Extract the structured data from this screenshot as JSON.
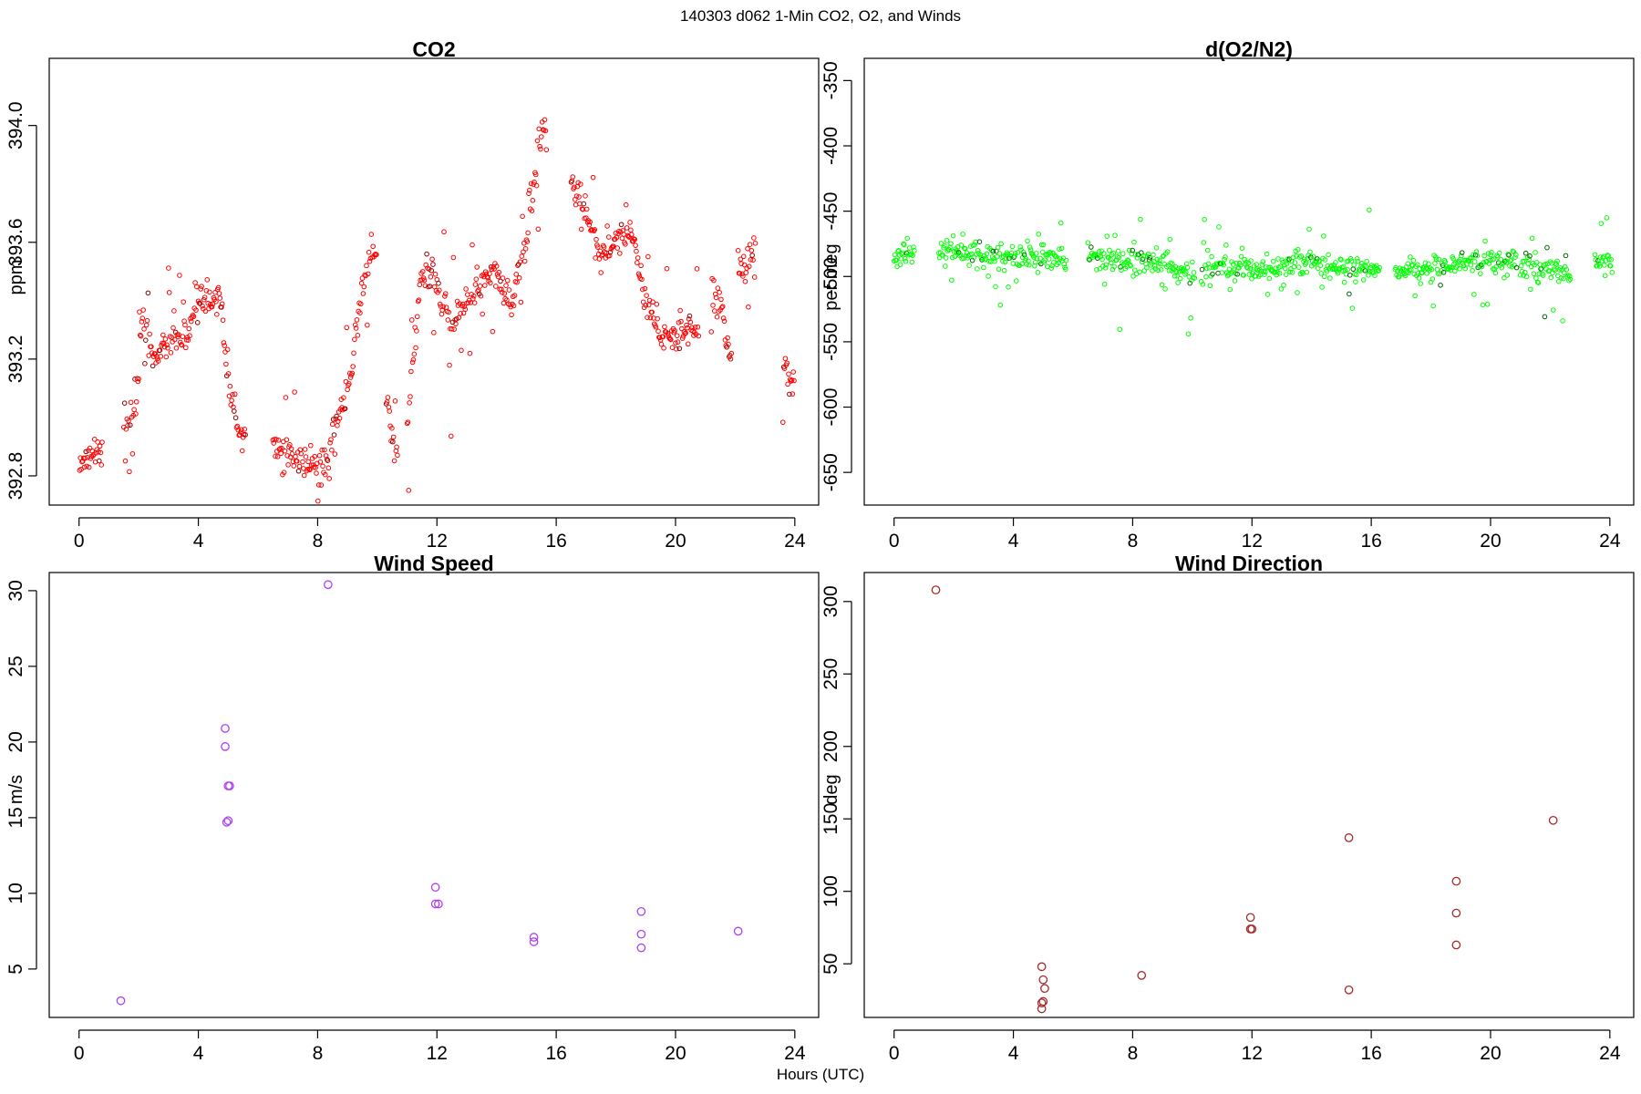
{
  "figure": {
    "title": "140303   d062   1-Min CO2, O2, and Winds",
    "xlabel": "Hours (UTC)"
  },
  "chart_data": [
    {
      "type": "scatter",
      "title": "CO2",
      "ylabel": "ppm",
      "xlim": [
        -1,
        24.8
      ],
      "ylim": [
        392.7,
        394.23
      ],
      "xticks": [
        0,
        4,
        8,
        12,
        16,
        20,
        24
      ],
      "yticks": [
        392.8,
        393.2,
        393.6,
        394.0
      ],
      "ytick_labels": [
        "392.8",
        "393.2",
        "393.6",
        "394.0"
      ],
      "color": "#ff0000",
      "dark_color": "#8b0000",
      "marker_size": "small",
      "anchors": [
        [
          0.02,
          392.84
        ],
        [
          0.6,
          392.88
        ],
        [
          0.8,
          null
        ],
        [
          1.5,
          392.98
        ],
        [
          1.9,
          393.02
        ],
        [
          2.1,
          393.32
        ],
        [
          2.5,
          393.2
        ],
        [
          3.5,
          393.28
        ],
        [
          4.0,
          393.37
        ],
        [
          4.7,
          393.42
        ],
        [
          4.9,
          393.2
        ],
        [
          5.2,
          393.02
        ],
        [
          5.5,
          392.92
        ],
        [
          5.6,
          null
        ],
        [
          6.5,
          392.92
        ],
        [
          7.2,
          392.86
        ],
        [
          8.2,
          392.82
        ],
        [
          8.5,
          392.96
        ],
        [
          9.0,
          393.08
        ],
        [
          9.5,
          393.45
        ],
        [
          9.8,
          393.55
        ],
        [
          10.0,
          null
        ],
        [
          10.3,
          393.05
        ],
        [
          10.6,
          392.85
        ],
        [
          10.7,
          null
        ],
        [
          11.0,
          393.0
        ],
        [
          11.5,
          393.5
        ],
        [
          12.0,
          393.46
        ],
        [
          12.5,
          393.32
        ],
        [
          13.0,
          393.4
        ],
        [
          14.0,
          393.5
        ],
        [
          14.5,
          393.38
        ],
        [
          15.0,
          393.6
        ],
        [
          15.5,
          393.98
        ],
        [
          15.7,
          null
        ],
        [
          16.5,
          393.82
        ],
        [
          17.0,
          393.7
        ],
        [
          17.5,
          393.55
        ],
        [
          18.0,
          393.6
        ],
        [
          18.5,
          393.65
        ],
        [
          19.0,
          393.4
        ],
        [
          19.5,
          393.28
        ],
        [
          20.0,
          393.28
        ],
        [
          20.5,
          393.3
        ],
        [
          20.8,
          null
        ],
        [
          21.2,
          393.42
        ],
        [
          21.5,
          393.4
        ],
        [
          21.8,
          393.22
        ],
        [
          21.9,
          null
        ],
        [
          22.1,
          393.48
        ],
        [
          22.6,
          393.58
        ],
        [
          22.7,
          null
        ],
        [
          23.6,
          393.2
        ],
        [
          23.9,
          393.12
        ],
        [
          24.0,
          null
        ]
      ],
      "noise": 0.05
    },
    {
      "type": "scatter",
      "title": "d(O2/N2)",
      "ylabel": "per meg",
      "xlim": [
        -1,
        24.8
      ],
      "ylim": [
        -675,
        -333
      ],
      "xticks": [
        0,
        4,
        8,
        12,
        16,
        20,
        24
      ],
      "yticks": [
        -350,
        -400,
        -450,
        -500,
        -550,
        -600,
        -650
      ],
      "ytick_labels": [
        "-350",
        "-400",
        "-450",
        "-500",
        "-550",
        "-600",
        "-650"
      ],
      "color": "#00ff00",
      "dark_color": "#006400",
      "marker_size": "small",
      "anchors": [
        [
          0.0,
          -485
        ],
        [
          0.6,
          -480
        ],
        [
          0.7,
          null
        ],
        [
          1.5,
          -480
        ],
        [
          3.0,
          -486
        ],
        [
          4.5,
          -484
        ],
        [
          5.7,
          -488
        ],
        [
          5.8,
          null
        ],
        [
          6.5,
          -484
        ],
        [
          8.5,
          -490
        ],
        [
          10.0,
          -496
        ],
        [
          10.1,
          null
        ],
        [
          10.3,
          -494
        ],
        [
          12.5,
          -494
        ],
        [
          14.0,
          -490
        ],
        [
          15.5,
          -494
        ],
        [
          16.2,
          -496
        ],
        [
          16.3,
          null
        ],
        [
          16.8,
          -494
        ],
        [
          18.0,
          -494
        ],
        [
          19.5,
          -488
        ],
        [
          20.8,
          -490
        ],
        [
          20.9,
          null
        ],
        [
          21.0,
          -490
        ],
        [
          22.0,
          -494
        ],
        [
          22.6,
          -496
        ],
        [
          22.7,
          null
        ],
        [
          23.5,
          -488
        ],
        [
          24.0,
          -490
        ],
        [
          24.1,
          null
        ]
      ],
      "noise": 8
    },
    {
      "type": "scatter",
      "title": "Wind Speed",
      "ylabel": "m/s",
      "xlim": [
        -1,
        24.8
      ],
      "ylim": [
        1.8,
        31.2
      ],
      "xticks": [
        0,
        4,
        8,
        12,
        16,
        20,
        24
      ],
      "yticks": [
        5,
        10,
        15,
        20,
        25,
        30
      ],
      "ytick_labels": [
        "5",
        "10",
        "15",
        "20",
        "25",
        "30"
      ],
      "color": "#b040f0",
      "marker_size": "large",
      "points": [
        [
          1.4,
          2.9
        ],
        [
          4.9,
          20.9
        ],
        [
          4.9,
          19.7
        ],
        [
          5.0,
          17.1
        ],
        [
          5.05,
          17.1
        ],
        [
          4.95,
          14.7
        ],
        [
          5.0,
          14.8
        ],
        [
          8.35,
          30.4
        ],
        [
          11.95,
          10.4
        ],
        [
          11.95,
          9.3
        ],
        [
          12.05,
          9.3
        ],
        [
          15.25,
          7.1
        ],
        [
          15.25,
          6.8
        ],
        [
          18.85,
          8.8
        ],
        [
          18.85,
          7.3
        ],
        [
          18.85,
          6.4
        ],
        [
          22.1,
          7.5
        ]
      ]
    },
    {
      "type": "scatter",
      "title": "Wind Direction",
      "ylabel": "deg",
      "xlim": [
        -1,
        24.8
      ],
      "ylim": [
        13,
        320
      ],
      "xticks": [
        0,
        4,
        8,
        12,
        16,
        20,
        24
      ],
      "yticks": [
        50,
        100,
        150,
        200,
        250,
        300
      ],
      "ytick_labels": [
        "50",
        "100",
        "150",
        "200",
        "250",
        "300"
      ],
      "color": "#a52a2a",
      "marker_size": "large",
      "points": [
        [
          1.4,
          308
        ],
        [
          4.95,
          48
        ],
        [
          5.0,
          39
        ],
        [
          5.05,
          33
        ],
        [
          4.95,
          23
        ],
        [
          5.0,
          24
        ],
        [
          4.95,
          19
        ],
        [
          8.3,
          42
        ],
        [
          11.95,
          82
        ],
        [
          11.95,
          74
        ],
        [
          12.0,
          74
        ],
        [
          15.25,
          137
        ],
        [
          15.25,
          32
        ],
        [
          18.85,
          107
        ],
        [
          18.85,
          85
        ],
        [
          18.85,
          63
        ],
        [
          22.1,
          149
        ]
      ]
    }
  ]
}
